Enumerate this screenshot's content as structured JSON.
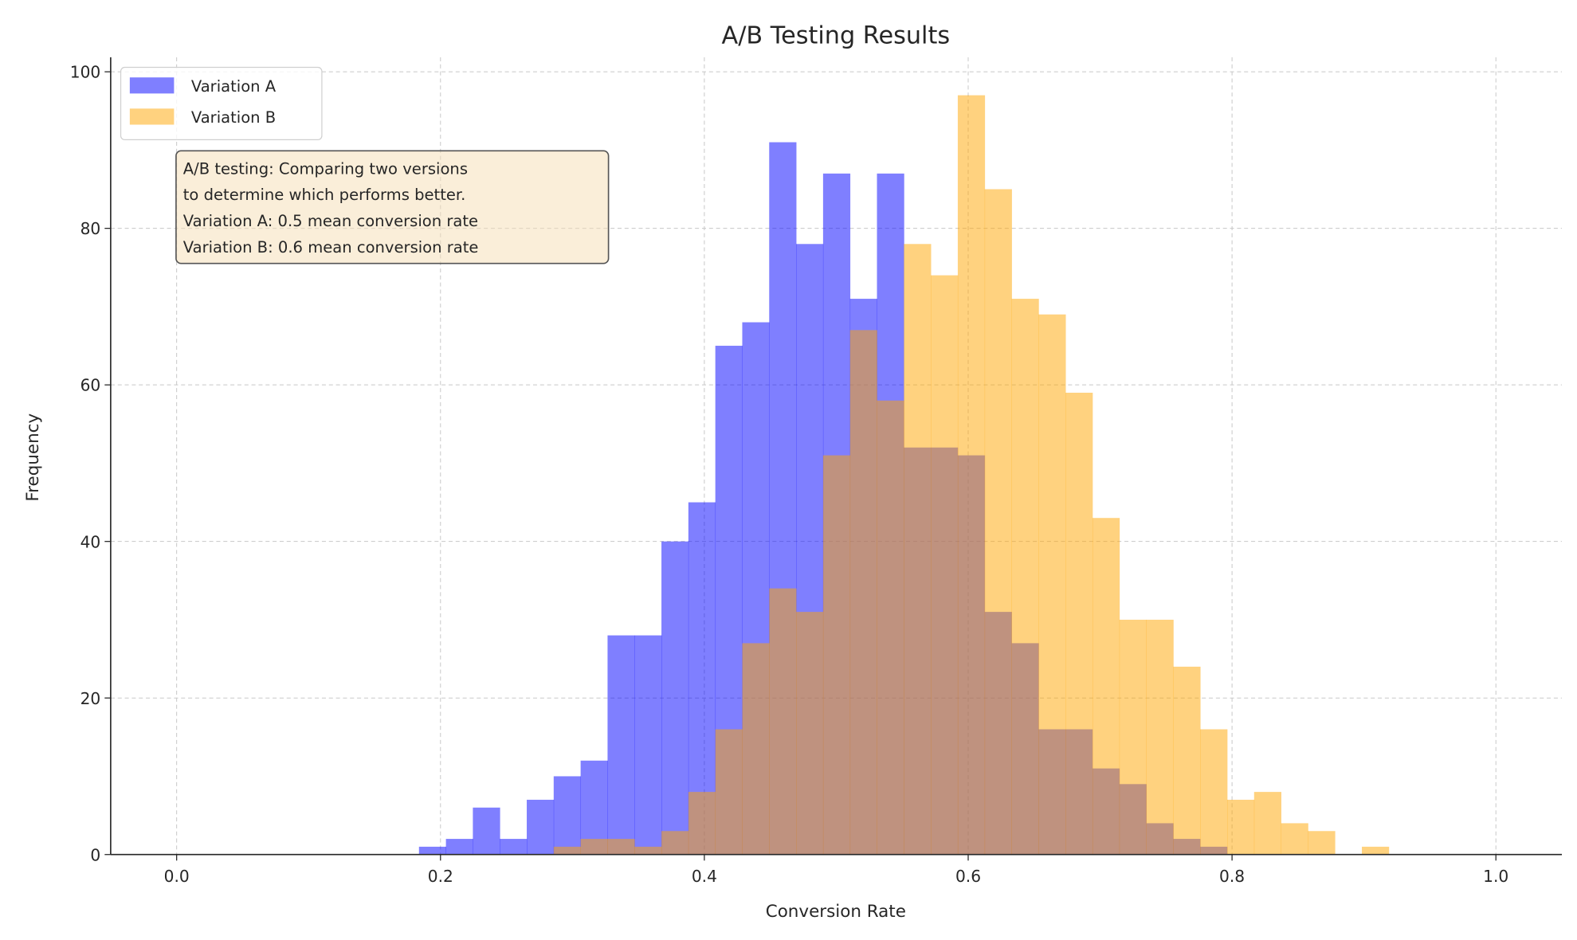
{
  "chart_data": {
    "type": "histogram",
    "title": "A/B Testing Results",
    "xlabel": "Conversion Rate",
    "ylabel": "Frequency",
    "xlim": [
      -0.05,
      1.05
    ],
    "ylim": [
      0,
      101.85
    ],
    "xticks": [
      "0.0",
      "0.2",
      "0.4",
      "0.6",
      "0.8",
      "1.0"
    ],
    "yticks": [
      "0",
      "20",
      "40",
      "60",
      "80",
      "100"
    ],
    "grid": true,
    "legend_placement": "top-left",
    "bin_width": 0.02042,
    "series": [
      {
        "name": "Variation A",
        "color": "#0000ff",
        "alpha": 0.5,
        "bin_start": 0.1837,
        "counts": [
          1,
          2,
          6,
          2,
          7,
          10,
          12,
          28,
          28,
          40,
          45,
          65,
          68,
          91,
          78,
          87,
          71,
          87,
          52,
          52,
          51,
          31,
          27,
          16,
          16,
          11,
          9,
          4,
          2,
          1
        ]
      },
      {
        "name": "Variation B",
        "color": "#ffa500",
        "alpha": 0.5,
        "bin_start": 0.2858,
        "counts": [
          1,
          2,
          2,
          1,
          3,
          8,
          16,
          27,
          34,
          31,
          51,
          67,
          58,
          78,
          74,
          97,
          85,
          71,
          69,
          59,
          43,
          30,
          30,
          24,
          16,
          7,
          8,
          4,
          3,
          0,
          1
        ]
      }
    ],
    "annotation": {
      "lines": [
        "A/B testing: Comparing two versions",
        "to determine which performs better.",
        "Variation A: 0.5 mean conversion rate",
        "Variation B: 0.6 mean conversion rate"
      ],
      "background": "#f5deb3"
    }
  }
}
